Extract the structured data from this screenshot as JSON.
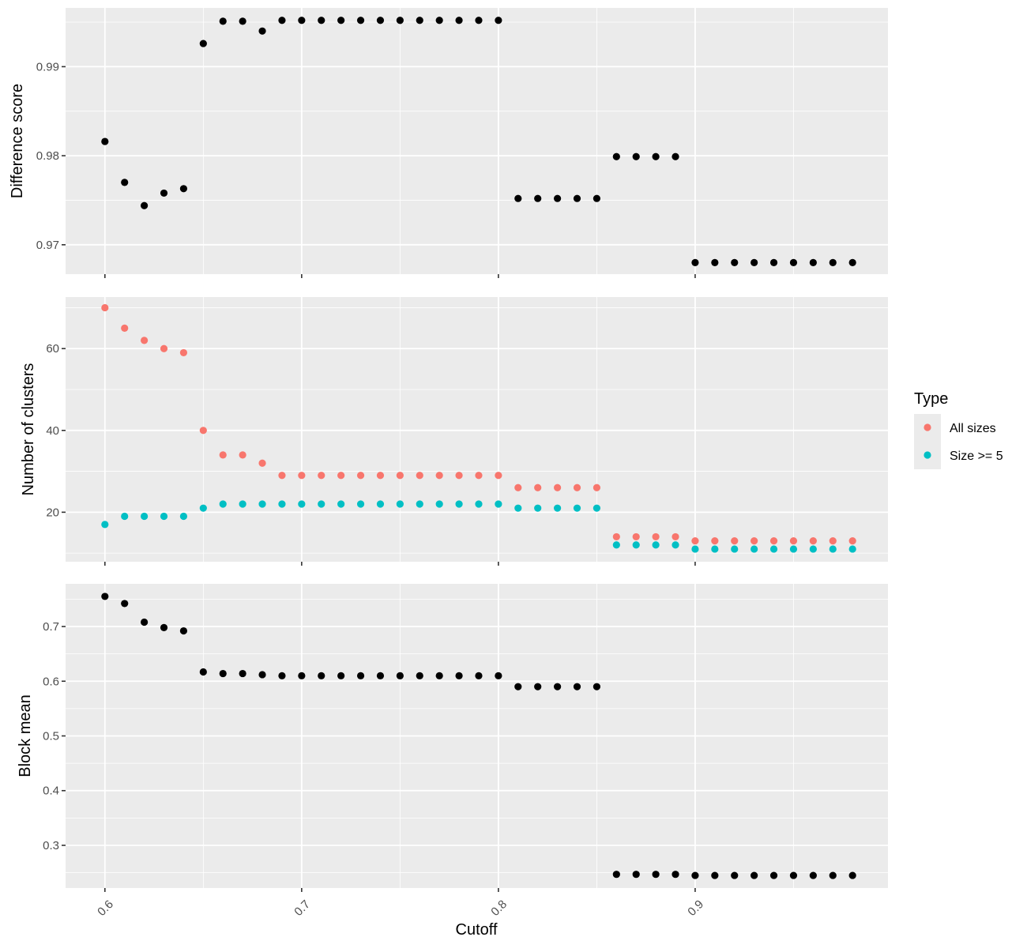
{
  "figure": {
    "xlabel": "Cutoff",
    "legend_title": "Type",
    "legend_position": "right"
  },
  "colors": {
    "panel_bg": "#EBEBEB",
    "grid": "#FFFFFF",
    "black": "#000000",
    "all_sizes": "#F8766D",
    "size_ge5": "#00BFC4",
    "axis_text": "#4D4D4D"
  },
  "chart_data": [
    {
      "type": "scatter",
      "ylabel": "Difference score",
      "xlim": [
        0.58,
        0.998
      ],
      "ylim": [
        0.9667,
        0.9966
      ],
      "xticks": [
        0.6,
        0.7,
        0.8,
        0.9
      ],
      "yticks": [
        0.97,
        0.98,
        0.99
      ],
      "show_x_tick_labels": false,
      "grid": true,
      "series": [
        {
          "color_key": "black",
          "x": [
            0.6,
            0.61,
            0.62,
            0.63,
            0.64,
            0.65,
            0.66,
            0.67,
            0.68,
            0.69,
            0.7,
            0.71,
            0.72,
            0.73,
            0.74,
            0.75,
            0.76,
            0.77,
            0.78,
            0.79,
            0.8,
            0.81,
            0.82,
            0.83,
            0.84,
            0.85,
            0.86,
            0.87,
            0.88,
            0.89,
            0.9,
            0.91,
            0.92,
            0.93,
            0.94,
            0.95,
            0.96,
            0.97,
            0.98
          ],
          "y": [
            0.9816,
            0.977,
            0.9744,
            0.9758,
            0.9763,
            0.9926,
            0.9951,
            0.9951,
            0.994,
            0.9952,
            0.9952,
            0.9952,
            0.9952,
            0.9952,
            0.9952,
            0.9952,
            0.9952,
            0.9952,
            0.9952,
            0.9952,
            0.9952,
            0.9752,
            0.9752,
            0.9752,
            0.9752,
            0.9752,
            0.9799,
            0.9799,
            0.9799,
            0.9799,
            0.968,
            0.968,
            0.968,
            0.968,
            0.968,
            0.968,
            0.968,
            0.968,
            0.968
          ]
        }
      ]
    },
    {
      "type": "scatter",
      "ylabel": "Number of clusters",
      "xlim": [
        0.58,
        0.998
      ],
      "ylim": [
        7.9,
        72.6
      ],
      "xticks": [
        0.6,
        0.7,
        0.8,
        0.9
      ],
      "yticks": [
        20,
        40,
        60
      ],
      "show_x_tick_labels": false,
      "grid": true,
      "series": [
        {
          "name": "All sizes",
          "color_key": "all_sizes",
          "x": [
            0.6,
            0.61,
            0.62,
            0.63,
            0.64,
            0.65,
            0.66,
            0.67,
            0.68,
            0.69,
            0.7,
            0.71,
            0.72,
            0.73,
            0.74,
            0.75,
            0.76,
            0.77,
            0.78,
            0.79,
            0.8,
            0.81,
            0.82,
            0.83,
            0.84,
            0.85,
            0.86,
            0.87,
            0.88,
            0.89,
            0.9,
            0.91,
            0.92,
            0.93,
            0.94,
            0.95,
            0.96,
            0.97,
            0.98
          ],
          "y": [
            70,
            65,
            62,
            60,
            59,
            40,
            34,
            34,
            32,
            29,
            29,
            29,
            29,
            29,
            29,
            29,
            29,
            29,
            29,
            29,
            29,
            26,
            26,
            26,
            26,
            26,
            14,
            14,
            14,
            14,
            13,
            13,
            13,
            13,
            13,
            13,
            13,
            13,
            13
          ]
        },
        {
          "name": "Size >= 5",
          "color_key": "size_ge5",
          "x": [
            0.6,
            0.61,
            0.62,
            0.63,
            0.64,
            0.65,
            0.66,
            0.67,
            0.68,
            0.69,
            0.7,
            0.71,
            0.72,
            0.73,
            0.74,
            0.75,
            0.76,
            0.77,
            0.78,
            0.79,
            0.8,
            0.81,
            0.82,
            0.83,
            0.84,
            0.85,
            0.86,
            0.87,
            0.88,
            0.89,
            0.9,
            0.91,
            0.92,
            0.93,
            0.94,
            0.95,
            0.96,
            0.97,
            0.98
          ],
          "y": [
            17,
            19,
            19,
            19,
            19,
            21,
            22,
            22,
            22,
            22,
            22,
            22,
            22,
            22,
            22,
            22,
            22,
            22,
            22,
            22,
            22,
            21,
            21,
            21,
            21,
            21,
            12,
            12,
            12,
            12,
            11,
            11,
            11,
            11,
            11,
            11,
            11,
            11,
            11
          ]
        }
      ]
    },
    {
      "type": "scatter",
      "ylabel": "Block mean",
      "xlim": [
        0.58,
        0.998
      ],
      "ylim": [
        0.222,
        0.778
      ],
      "xticks": [
        0.6,
        0.7,
        0.8,
        0.9
      ],
      "yticks": [
        0.3,
        0.4,
        0.5,
        0.6,
        0.7
      ],
      "show_x_tick_labels": true,
      "grid": true,
      "series": [
        {
          "color_key": "black",
          "x": [
            0.6,
            0.61,
            0.62,
            0.63,
            0.64,
            0.65,
            0.66,
            0.67,
            0.68,
            0.69,
            0.7,
            0.71,
            0.72,
            0.73,
            0.74,
            0.75,
            0.76,
            0.77,
            0.78,
            0.79,
            0.8,
            0.81,
            0.82,
            0.83,
            0.84,
            0.85,
            0.86,
            0.87,
            0.88,
            0.89,
            0.9,
            0.91,
            0.92,
            0.93,
            0.94,
            0.95,
            0.96,
            0.97,
            0.98
          ],
          "y": [
            0.755,
            0.742,
            0.708,
            0.698,
            0.692,
            0.617,
            0.614,
            0.614,
            0.612,
            0.61,
            0.61,
            0.61,
            0.61,
            0.61,
            0.61,
            0.61,
            0.61,
            0.61,
            0.61,
            0.61,
            0.61,
            0.59,
            0.59,
            0.59,
            0.59,
            0.59,
            0.247,
            0.247,
            0.247,
            0.247,
            0.245,
            0.245,
            0.245,
            0.245,
            0.245,
            0.245,
            0.245,
            0.245,
            0.245
          ]
        }
      ]
    }
  ]
}
